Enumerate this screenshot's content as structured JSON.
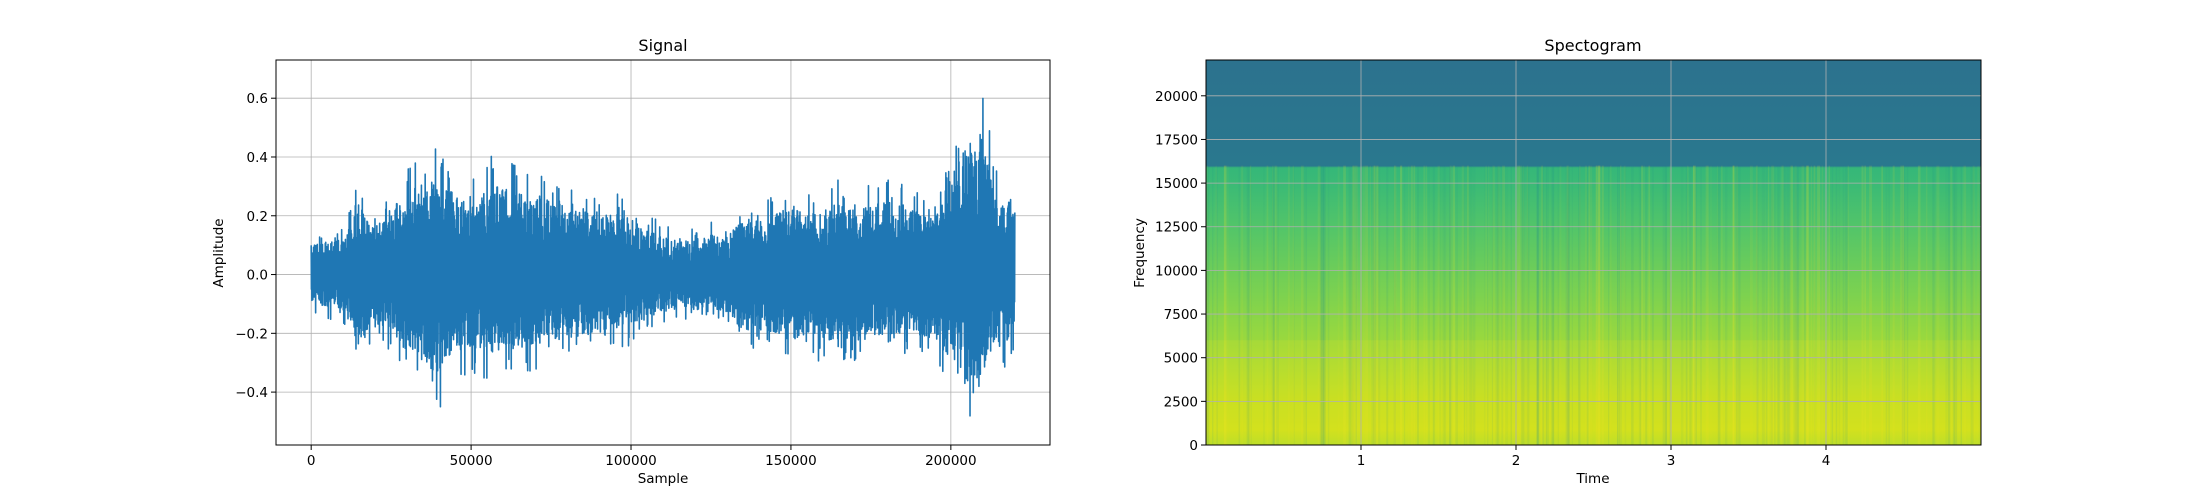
{
  "chart_data": [
    {
      "type": "line",
      "title": "Signal",
      "xlabel": "Sample",
      "ylabel": "Amplitude",
      "xlim": [
        -11000,
        231000
      ],
      "ylim": [
        -0.58,
        0.73
      ],
      "xticks": [
        0,
        50000,
        100000,
        150000,
        200000
      ],
      "xtick_labels": [
        "0",
        "50000",
        "100000",
        "150000",
        "200000"
      ],
      "yticks": [
        -0.4,
        -0.2,
        0.0,
        0.2,
        0.4,
        0.6
      ],
      "ytick_labels": [
        "−0.4",
        "−0.2",
        "0.0",
        "0.2",
        "0.4",
        "0.6"
      ],
      "grid": true,
      "line_color": "#1f77b4",
      "series": [
        {
          "x": [
            0,
            5000,
            10000,
            15000,
            20000,
            25000,
            30000,
            35000,
            40000,
            45000,
            50000,
            55000,
            60000,
            65000,
            70000,
            75000,
            80000,
            85000,
            90000,
            95000,
            100000,
            105000,
            110000,
            115000,
            120000,
            125000,
            130000,
            135000,
            140000,
            145000,
            150000,
            155000,
            160000,
            165000,
            170000,
            175000,
            180000,
            185000,
            190000,
            195000,
            200000,
            205000,
            210000,
            215000,
            220000
          ],
          "upper": [
            0.14,
            0.15,
            0.16,
            0.33,
            0.22,
            0.3,
            0.38,
            0.42,
            0.44,
            0.36,
            0.32,
            0.42,
            0.4,
            0.38,
            0.37,
            0.34,
            0.33,
            0.3,
            0.26,
            0.29,
            0.22,
            0.2,
            0.18,
            0.15,
            0.16,
            0.18,
            0.17,
            0.26,
            0.25,
            0.28,
            0.33,
            0.27,
            0.29,
            0.33,
            0.29,
            0.32,
            0.33,
            0.32,
            0.28,
            0.25,
            0.45,
            0.6,
            0.66,
            0.32,
            0.35
          ],
          "lower": [
            -0.14,
            -0.15,
            -0.16,
            -0.33,
            -0.22,
            -0.26,
            -0.36,
            -0.4,
            -0.46,
            -0.36,
            -0.33,
            -0.36,
            -0.34,
            -0.34,
            -0.33,
            -0.3,
            -0.3,
            -0.27,
            -0.28,
            -0.27,
            -0.24,
            -0.2,
            -0.17,
            -0.16,
            -0.16,
            -0.15,
            -0.17,
            -0.26,
            -0.25,
            -0.26,
            -0.3,
            -0.28,
            -0.3,
            -0.29,
            -0.3,
            -0.3,
            -0.31,
            -0.28,
            -0.29,
            -0.29,
            -0.4,
            -0.52,
            -0.44,
            -0.35,
            -0.26
          ]
        }
      ]
    },
    {
      "type": "heatmap",
      "title": "Spectogram",
      "xlabel": "Time",
      "ylabel": "Frequency",
      "xlim": [
        0,
        5
      ],
      "ylim": [
        0,
        22050
      ],
      "xticks": [
        1,
        2,
        3,
        4
      ],
      "xtick_labels": [
        "1",
        "2",
        "3",
        "4"
      ],
      "yticks": [
        0,
        2500,
        5000,
        7500,
        10000,
        12500,
        15000,
        17500,
        20000
      ],
      "ytick_labels": [
        "0",
        "2500",
        "5000",
        "7500",
        "10000",
        "12500",
        "15000",
        "17500",
        "20000"
      ],
      "grid": true,
      "colormap": "viridis",
      "cutoff_frequency": 16000,
      "dominant_band": [
        0,
        6000
      ]
    }
  ]
}
